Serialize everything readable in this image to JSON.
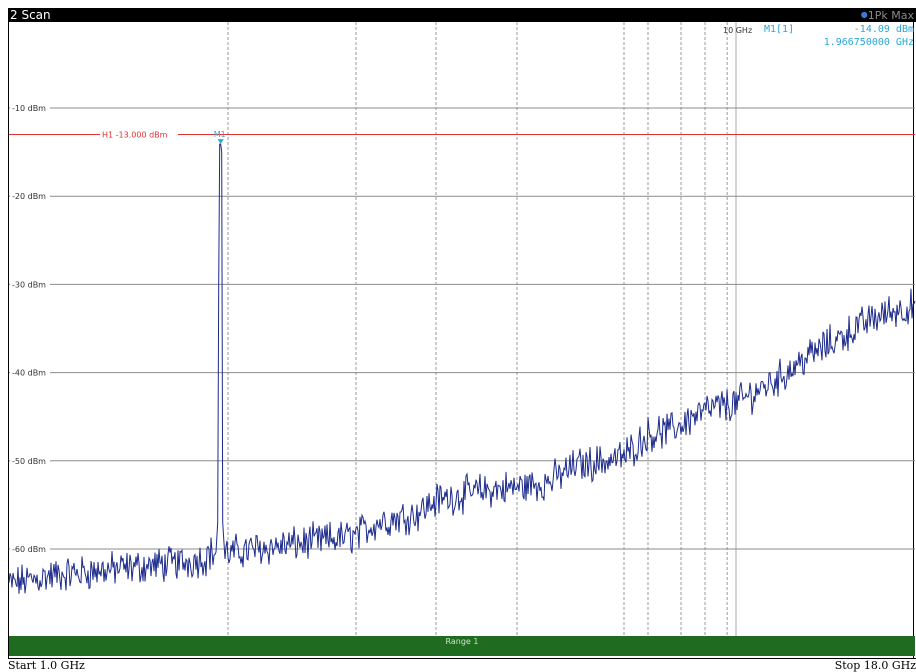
{
  "window": {
    "title": "2 Scan",
    "trace_mode": "1Pk Max"
  },
  "chart_data": {
    "type": "line",
    "title": "",
    "xlabel": "",
    "ylabel": "",
    "x_unit": "GHz",
    "y_unit": "dBm",
    "xlim": [
      1.0,
      18.0
    ],
    "ylim": [
      -70,
      0
    ],
    "grid": true,
    "y_gridlines": [
      -10,
      -20,
      -30,
      -40,
      -50,
      -60
    ],
    "y_tick_labels": [
      "-10 dBm",
      "-20 dBm",
      "-30 dBm",
      "-40 dBm",
      "-50 dBm",
      "-60 dBm"
    ],
    "x_gridlines_ghz": [
      2.0,
      3.0,
      5.0,
      6.0,
      7.8,
      8.0,
      8.7,
      9.3,
      9.8,
      10.0
    ],
    "x_marker_label": "10 GHz",
    "limit_line": {
      "label": "H1 -13.000 dBm",
      "value": -13.0,
      "color": "#e03030"
    },
    "marker": {
      "name": "M1",
      "readout_label": "M1[1]",
      "level_text": "-14.09 dBm",
      "freq_text": "1.966750000 GHz",
      "x": 1.96675,
      "y": -14.09,
      "color": "#2aa8d8"
    },
    "series": [
      {
        "color": "#1c2a8c",
        "x": [
          1.0,
          1.2,
          1.4,
          1.6,
          1.8,
          1.9,
          1.95,
          1.96675,
          2.0,
          2.2,
          2.5,
          3.0,
          3.5,
          4.0,
          4.5,
          5.0,
          5.5,
          6.0,
          6.5,
          7.0,
          7.5,
          7.8,
          8.0,
          8.5,
          9.0,
          9.5,
          10.0,
          11.0,
          12.0,
          13.0,
          14.0,
          15.0,
          16.0,
          17.0,
          18.0
        ],
        "y": [
          -64.0,
          -63.0,
          -62.5,
          -62.0,
          -61.5,
          -61.0,
          -60.0,
          -14.09,
          -60.5,
          -60.0,
          -59.5,
          -58.5,
          -57.0,
          -56.5,
          -56.0,
          -54.5,
          -53.5,
          -53.0,
          -52.5,
          -50.5,
          -50.0,
          -49.5,
          -47.0,
          -46.5,
          -45.0,
          -44.0,
          -43.5,
          -42.0,
          -40.5,
          -38.5,
          -37.0,
          -35.5,
          -34.0,
          -33.0,
          -32.5
        ]
      }
    ]
  },
  "range_bar": {
    "label": "Range 1"
  },
  "footer": {
    "start_label": "Start 1.0 GHz",
    "stop_label": "Stop 18.0 GHz"
  }
}
